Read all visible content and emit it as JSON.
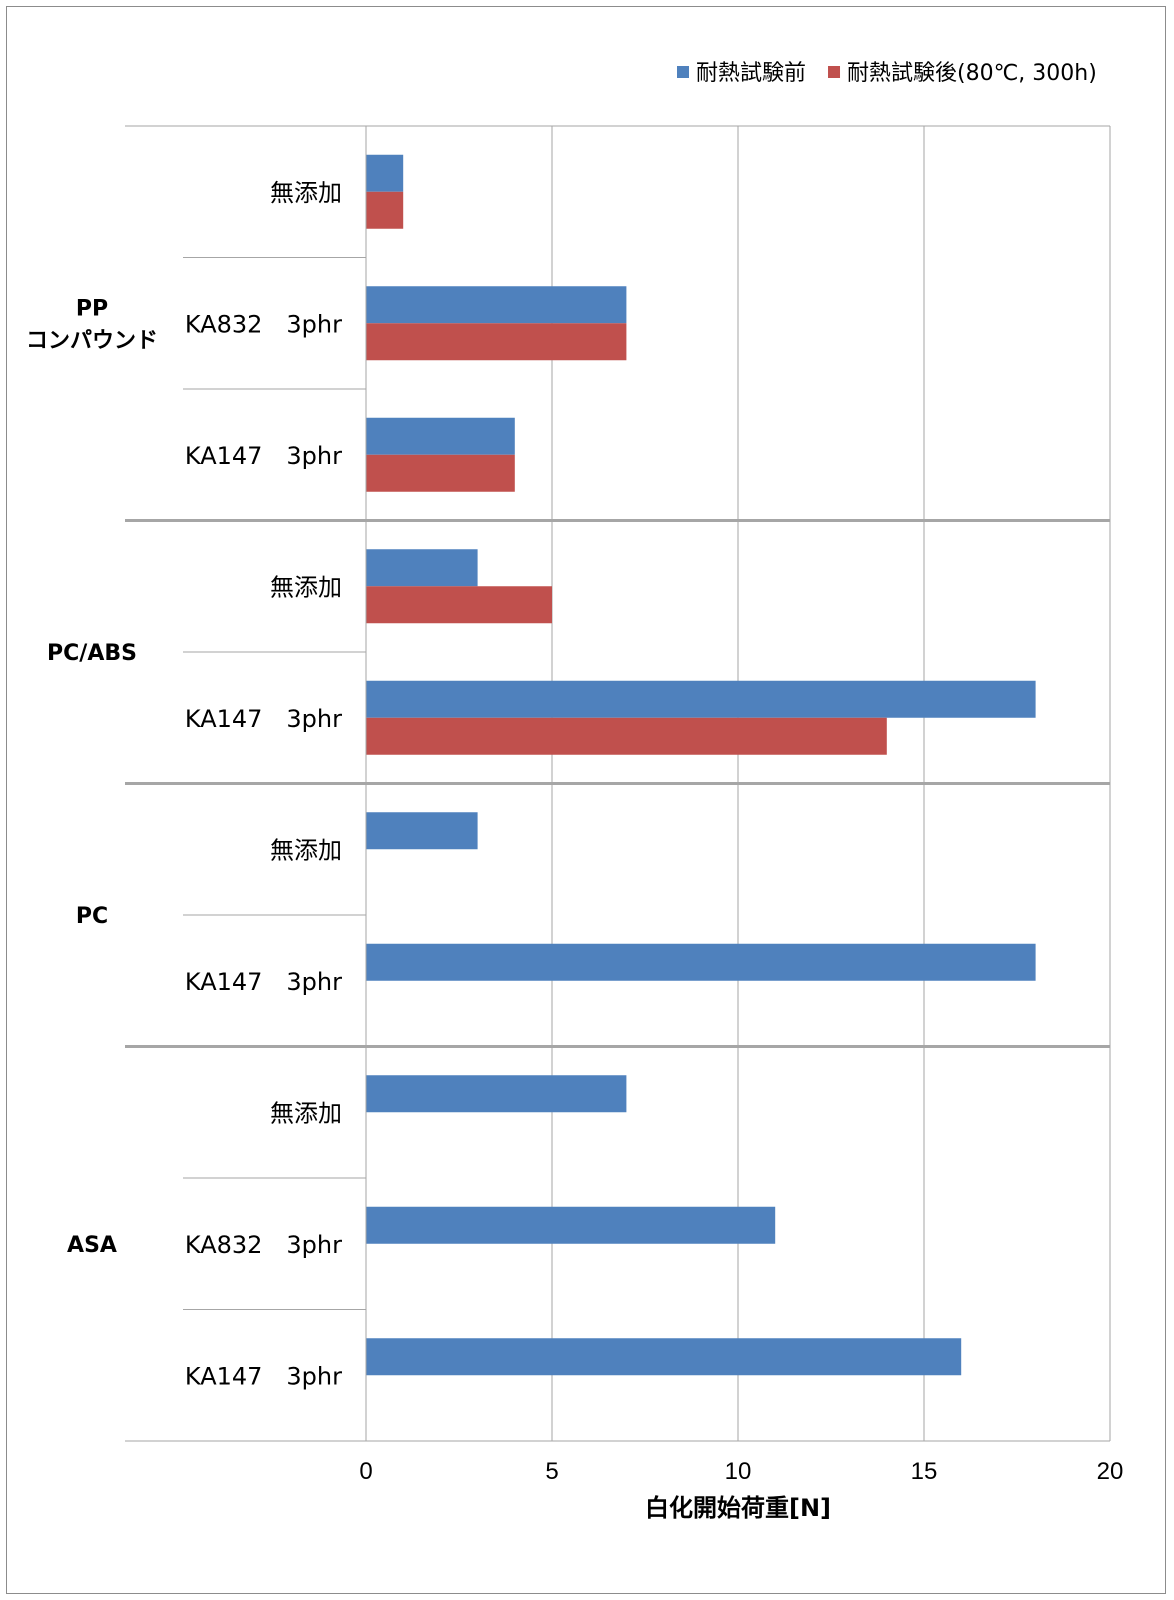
{
  "chart_data": {
    "type": "bar",
    "orientation": "horizontal",
    "xlabel": "白化開始荷重[N]",
    "xlim": [
      0,
      20
    ],
    "xticks": [
      0,
      5,
      10,
      15,
      20
    ],
    "grid": true,
    "legend_position": "top-right",
    "series": [
      {
        "name": "耐熱試験前",
        "color": "#4f81bd"
      },
      {
        "name": "耐熱試験後(80℃, 300h)",
        "color": "#c0504d"
      }
    ],
    "groups": [
      {
        "label_lines": [
          "PP",
          "コンパウンド"
        ],
        "items": [
          {
            "label": "無添加",
            "values": [
              1,
              1
            ]
          },
          {
            "label": "KA832　3phr",
            "values": [
              7,
              7
            ]
          },
          {
            "label": "KA147　3phr",
            "values": [
              4,
              4
            ]
          }
        ]
      },
      {
        "label_lines": [
          "PC/ABS"
        ],
        "items": [
          {
            "label": "無添加",
            "values": [
              3,
              5
            ]
          },
          {
            "label": "KA147　3phr",
            "values": [
              18,
              14
            ]
          }
        ]
      },
      {
        "label_lines": [
          "PC"
        ],
        "items": [
          {
            "label": "無添加",
            "values": [
              3,
              null
            ]
          },
          {
            "label": "KA147　3phr",
            "values": [
              18,
              null
            ]
          }
        ]
      },
      {
        "label_lines": [
          "ASA"
        ],
        "items": [
          {
            "label": "無添加",
            "values": [
              7,
              null
            ]
          },
          {
            "label": "KA832　3phr",
            "values": [
              11,
              null
            ]
          },
          {
            "label": "KA147　3phr",
            "values": [
              16,
              null
            ]
          }
        ]
      }
    ]
  }
}
